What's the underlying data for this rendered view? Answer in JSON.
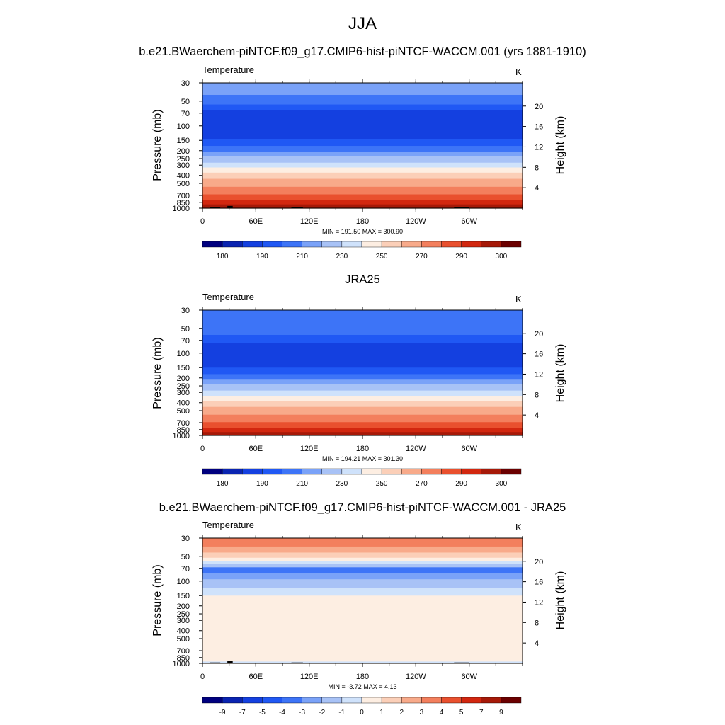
{
  "page": {
    "title": "JJA",
    "panel_titles": [
      "b.e21.BWaerchem-piNTCF.f09_g17.CMIP6-hist-piNTCF-WACCM.001 (yrs 1881-1910)",
      "JRA25",
      "b.e21.BWaerchem-piNTCF.f09_g17.CMIP6-hist-piNTCF-WACCM.001 - JRA25"
    ]
  },
  "colors": {
    "abs_palette": [
      "#00007f",
      "#0a24b1",
      "#1440e0",
      "#2058f4",
      "#3d74f7",
      "#7aa2f8",
      "#a8c2f6",
      "#cfe2fb",
      "#fdeee2",
      "#fbcfb8",
      "#f8aa8a",
      "#f37f5d",
      "#e9502e",
      "#d2270f",
      "#a61908",
      "#6b0000"
    ],
    "diff_palette": [
      "#00007f",
      "#0a24b1",
      "#1440e0",
      "#2058f4",
      "#3d74f7",
      "#7aa2f8",
      "#a8c2f6",
      "#cfe2fb",
      "#fdeee2",
      "#fbcfb8",
      "#f8aa8a",
      "#f37f5d",
      "#e9502e",
      "#d2270f",
      "#a61908",
      "#6b0000"
    ],
    "terrain": "#000000"
  },
  "chart_data": [
    {
      "type": "heatmap",
      "panel": "model",
      "variable_label": "Temperature",
      "unit_label": "K",
      "x_ticks": [
        "0",
        "60E",
        "120E",
        "180",
        "120W",
        "60W"
      ],
      "xlim_deg": [
        0,
        360
      ],
      "y_label": "Pressure (mb)",
      "y_ticks": [
        "30",
        "50",
        "70",
        "100",
        "150",
        "200",
        "250",
        "300",
        "400",
        "500",
        "700",
        "850",
        "1000"
      ],
      "ylim_mb": [
        1000,
        30
      ],
      "y2_label": "Height (km)",
      "y2_ticks": [
        "20",
        "16",
        "12",
        "8",
        "4"
      ],
      "min_max": "MIN = 191.50  MAX = 300.90",
      "colorbar_labels": [
        "180",
        "190",
        "210",
        "230",
        "250",
        "270",
        "290",
        "300"
      ],
      "level_profile": [
        {
          "p": 30,
          "level": 5
        },
        {
          "p": 42,
          "level": 4
        },
        {
          "p": 55,
          "level": 3
        },
        {
          "p": 65,
          "level": 2
        },
        {
          "p": 120,
          "level": 2
        },
        {
          "p": 145,
          "level": 3
        },
        {
          "p": 175,
          "level": 4
        },
        {
          "p": 205,
          "level": 5
        },
        {
          "p": 235,
          "level": 6
        },
        {
          "p": 280,
          "level": 7
        },
        {
          "p": 320,
          "level": 8
        },
        {
          "p": 370,
          "level": 9
        },
        {
          "p": 440,
          "level": 10
        },
        {
          "p": 550,
          "level": 11
        },
        {
          "p": 680,
          "level": 12
        },
        {
          "p": 800,
          "level": 13
        },
        {
          "p": 900,
          "level": 14
        },
        {
          "p": 1000,
          "level": 14
        }
      ],
      "terrain": [
        {
          "lon": 8,
          "p": 975
        },
        {
          "lon": 20,
          "p": 975
        },
        {
          "lon": 28,
          "p": 940
        },
        {
          "lon": 34,
          "p": 975
        },
        {
          "lon": 100,
          "p": 975
        },
        {
          "lon": 113,
          "p": 975
        },
        {
          "lon": 283,
          "p": 975
        },
        {
          "lon": 300,
          "p": 975
        }
      ]
    },
    {
      "type": "heatmap",
      "panel": "obs",
      "variable_label": "Temperature",
      "unit_label": "K",
      "x_ticks": [
        "0",
        "60E",
        "120E",
        "180",
        "120W",
        "60W"
      ],
      "xlim_deg": [
        0,
        360
      ],
      "y_label": "Pressure (mb)",
      "y_ticks": [
        "30",
        "50",
        "70",
        "100",
        "150",
        "200",
        "250",
        "300",
        "400",
        "500",
        "700",
        "850",
        "1000"
      ],
      "ylim_mb": [
        1000,
        30
      ],
      "y2_label": "Height (km)",
      "y2_ticks": [
        "20",
        "16",
        "12",
        "8",
        "4"
      ],
      "min_max": "MIN = 194.21  MAX = 301.30",
      "colorbar_labels": [
        "180",
        "190",
        "210",
        "230",
        "250",
        "270",
        "290",
        "300"
      ],
      "level_profile": [
        {
          "p": 30,
          "level": 4
        },
        {
          "p": 60,
          "level": 3
        },
        {
          "p": 75,
          "level": 2
        },
        {
          "p": 120,
          "level": 2
        },
        {
          "p": 150,
          "level": 3
        },
        {
          "p": 180,
          "level": 4
        },
        {
          "p": 210,
          "level": 5
        },
        {
          "p": 240,
          "level": 6
        },
        {
          "p": 285,
          "level": 7
        },
        {
          "p": 330,
          "level": 8
        },
        {
          "p": 380,
          "level": 9
        },
        {
          "p": 450,
          "level": 10
        },
        {
          "p": 560,
          "level": 11
        },
        {
          "p": 690,
          "level": 12
        },
        {
          "p": 810,
          "level": 13
        },
        {
          "p": 910,
          "level": 14
        },
        {
          "p": 1000,
          "level": 14
        }
      ],
      "terrain": []
    },
    {
      "type": "heatmap",
      "panel": "difference",
      "variable_label": "Temperature",
      "unit_label": "K",
      "x_ticks": [
        "0",
        "60E",
        "120E",
        "180",
        "120W",
        "60W"
      ],
      "xlim_deg": [
        0,
        360
      ],
      "y_label": "Pressure (mb)",
      "y_ticks": [
        "30",
        "50",
        "70",
        "100",
        "150",
        "200",
        "250",
        "300",
        "400",
        "500",
        "700",
        "850",
        "1000"
      ],
      "ylim_mb": [
        1000,
        30
      ],
      "y2_label": "Height (km)",
      "y2_ticks": [
        "20",
        "16",
        "12",
        "8",
        "4"
      ],
      "min_max": "MIN =  -3.72  MAX =   4.13",
      "colorbar_labels": [
        "-9",
        "-7",
        "-5",
        "-4",
        "-3",
        "-2",
        "-1",
        "0",
        "1",
        "2",
        "3",
        "4",
        "5",
        "7",
        "9"
      ],
      "level_profile": [
        {
          "p": 30,
          "level": 11
        },
        {
          "p": 38,
          "level": 10
        },
        {
          "p": 45,
          "level": 9
        },
        {
          "p": 52,
          "level": 8
        },
        {
          "p": 57,
          "level": 7
        },
        {
          "p": 62,
          "level": 6
        },
        {
          "p": 68,
          "level": 4
        },
        {
          "p": 80,
          "level": 5
        },
        {
          "p": 95,
          "level": 6
        },
        {
          "p": 120,
          "level": 7
        },
        {
          "p": 150,
          "level": 8
        },
        {
          "p": 880,
          "level": 8
        },
        {
          "p": 950,
          "level": 7
        },
        {
          "p": 985,
          "level": 9
        },
        {
          "p": 1000,
          "level": 9
        }
      ],
      "terrain": [
        {
          "lon": 8,
          "p": 975
        },
        {
          "lon": 20,
          "p": 975
        },
        {
          "lon": 28,
          "p": 940
        },
        {
          "lon": 34,
          "p": 975
        },
        {
          "lon": 100,
          "p": 975
        },
        {
          "lon": 113,
          "p": 975
        },
        {
          "lon": 283,
          "p": 975
        },
        {
          "lon": 300,
          "p": 975
        }
      ]
    }
  ]
}
